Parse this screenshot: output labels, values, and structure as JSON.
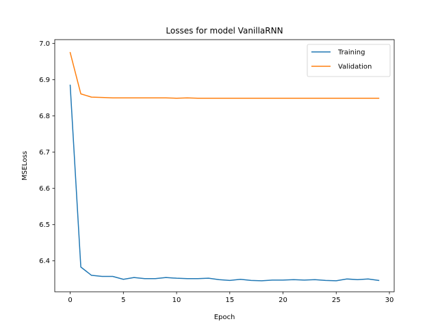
{
  "chart_data": {
    "type": "line",
    "title": "Losses for model VanillaRNN",
    "xlabel": "Epoch",
    "ylabel": "MSELoss",
    "xlim": [
      -1.45,
      30.45
    ],
    "ylim": [
      6.3146,
      7.0107
    ],
    "xticks": [
      0,
      5,
      10,
      15,
      20,
      25,
      30
    ],
    "yticks": [
      6.4,
      6.5,
      6.6,
      6.7,
      6.8,
      6.9,
      7.0
    ],
    "ytick_labels": [
      "6.4",
      "6.5",
      "6.6",
      "6.7",
      "6.8",
      "6.9",
      "7.0"
    ],
    "grid": false,
    "legend_position": "top-right",
    "x": [
      0,
      1,
      2,
      3,
      4,
      5,
      6,
      7,
      8,
      9,
      10,
      11,
      12,
      13,
      14,
      15,
      16,
      17,
      18,
      19,
      20,
      21,
      22,
      23,
      24,
      25,
      26,
      27,
      28,
      29
    ],
    "series": [
      {
        "name": "Training",
        "color": "#1f77b4",
        "values": [
          6.885,
          6.383,
          6.36,
          6.357,
          6.357,
          6.349,
          6.354,
          6.351,
          6.351,
          6.354,
          6.352,
          6.351,
          6.351,
          6.352,
          6.348,
          6.346,
          6.349,
          6.346,
          6.345,
          6.347,
          6.347,
          6.348,
          6.347,
          6.348,
          6.346,
          6.345,
          6.35,
          6.348,
          6.35,
          6.346
        ]
      },
      {
        "name": "Validation",
        "color": "#ff7f0e",
        "values": [
          6.975,
          6.861,
          6.852,
          6.851,
          6.85,
          6.85,
          6.85,
          6.85,
          6.85,
          6.85,
          6.849,
          6.85,
          6.849,
          6.849,
          6.849,
          6.849,
          6.849,
          6.849,
          6.849,
          6.849,
          6.849,
          6.849,
          6.849,
          6.849,
          6.849,
          6.849,
          6.849,
          6.849,
          6.849,
          6.849
        ]
      }
    ]
  }
}
